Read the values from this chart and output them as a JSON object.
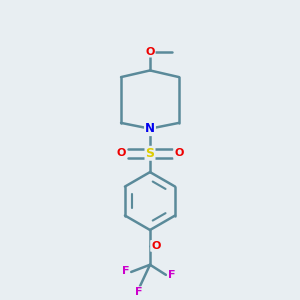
{
  "background_color": "#e8eef2",
  "bond_color": "#5a8a9a",
  "bond_width": 1.8,
  "atom_colors": {
    "N": "#0000ee",
    "O": "#ee0000",
    "S": "#ddcc00",
    "F": "#cc00cc",
    "C": "#5a8a9a"
  },
  "figsize": [
    3.0,
    3.0
  ],
  "dpi": 100
}
